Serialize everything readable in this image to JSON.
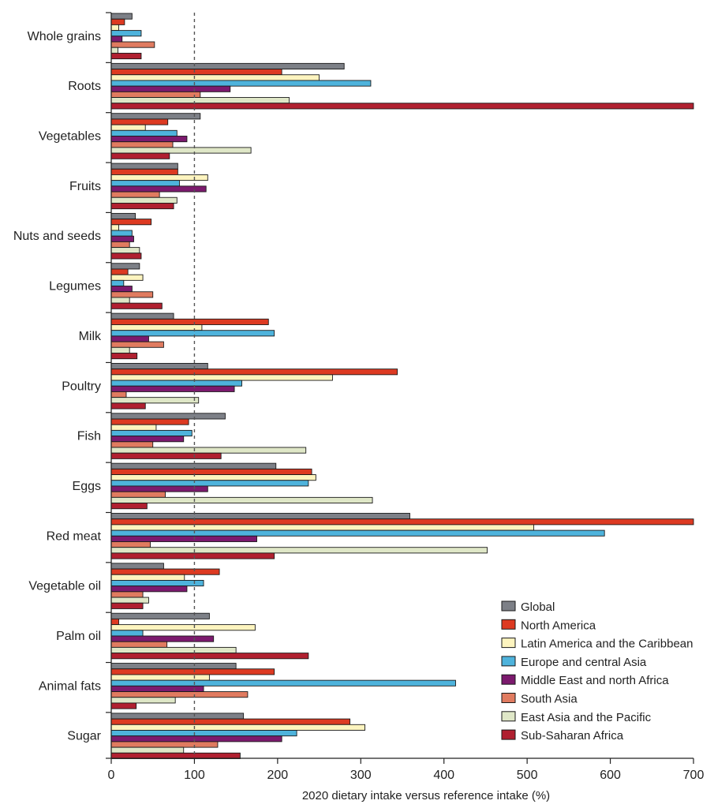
{
  "chart_data": {
    "type": "bar",
    "orientation": "horizontal",
    "title": "",
    "xlabel": "2020 dietary intake versus reference intake (%)",
    "ylabel": "",
    "xlim": [
      0,
      700
    ],
    "xticks": [
      0,
      100,
      200,
      300,
      400,
      500,
      600,
      700
    ],
    "tick_labels": [
      "0",
      "100",
      "200",
      "300",
      "400",
      "500",
      "600",
      "700"
    ],
    "reference_line": 100,
    "grid": false,
    "legend_position": "bottom-right",
    "categories": [
      "Whole grains",
      "Roots",
      "Vegetables",
      "Fruits",
      "Nuts and seeds",
      "Legumes",
      "Milk",
      "Poultry",
      "Fish",
      "Eggs",
      "Red meat",
      "Vegetable oil",
      "Palm oil",
      "Animal fats",
      "Sugar"
    ],
    "series": [
      {
        "name": "Global",
        "color": "#7d8087",
        "values": [
          25,
          280,
          107,
          80,
          29,
          34,
          75,
          116,
          137,
          198,
          359,
          63,
          118,
          150,
          159
        ]
      },
      {
        "name": "North America",
        "color": "#dd3a22",
        "values": [
          16,
          205,
          68,
          80,
          48,
          20,
          189,
          344,
          93,
          241,
          700,
          130,
          9,
          196,
          287
        ]
      },
      {
        "name": "Latin America and the Caribbean",
        "color": "#fdf4bf",
        "values": [
          9,
          250,
          41,
          116,
          9,
          38,
          109,
          266,
          54,
          246,
          508,
          88,
          173,
          118,
          305
        ]
      },
      {
        "name": "Europe and central Asia",
        "color": "#4eb3dc",
        "values": [
          36,
          312,
          79,
          82,
          25,
          15,
          196,
          157,
          97,
          237,
          593,
          111,
          38,
          414,
          223
        ]
      },
      {
        "name": "Middle East and north Africa",
        "color": "#7c1a6e",
        "values": [
          13,
          143,
          91,
          114,
          27,
          25,
          45,
          148,
          87,
          116,
          175,
          91,
          123,
          111,
          205
        ]
      },
      {
        "name": "South Asia",
        "color": "#e07b60",
        "values": [
          52,
          107,
          74,
          58,
          22,
          50,
          63,
          18,
          50,
          65,
          47,
          38,
          67,
          164,
          128
        ]
      },
      {
        "name": "East Asia and the Pacific",
        "color": "#dfe7c7",
        "values": [
          8,
          214,
          168,
          79,
          34,
          22,
          22,
          105,
          234,
          314,
          452,
          45,
          150,
          77,
          87
        ]
      },
      {
        "name": "Sub-Saharan Africa",
        "color": "#b02030",
        "values": [
          36,
          700,
          70,
          75,
          36,
          61,
          31,
          41,
          132,
          43,
          196,
          38,
          237,
          30,
          155
        ]
      }
    ]
  }
}
